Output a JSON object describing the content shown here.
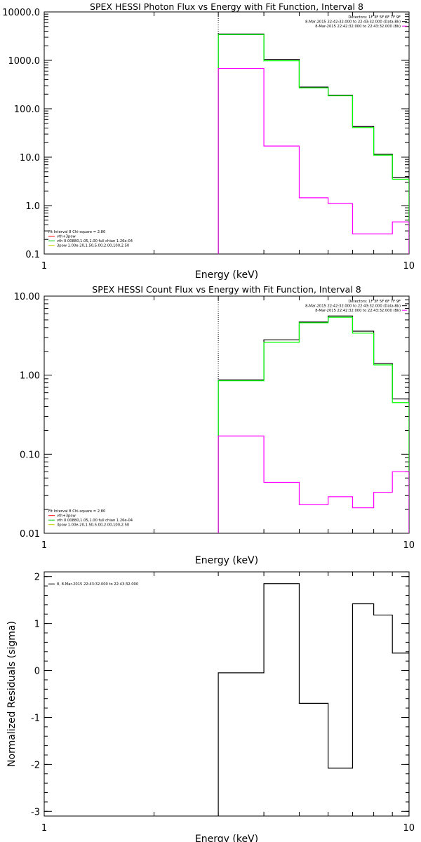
{
  "chart_data": [
    {
      "type": "line",
      "title": "SPEX HESSI Photon Flux vs Energy with Fit Function, Interval 8",
      "xlabel": "Energy (keV)",
      "ylabel": "",
      "xscale": "log",
      "yscale": "log",
      "xlim": [
        1,
        10
      ],
      "ylim": [
        0.1,
        10000
      ],
      "x_ticks": [
        {
          "v": 1,
          "label": "1"
        },
        {
          "v": 10,
          "label": "10"
        }
      ],
      "y_ticks": [
        {
          "v": 0.1,
          "label": "0.1"
        },
        {
          "v": 1,
          "label": "1.0"
        },
        {
          "v": 10,
          "label": "10.0"
        },
        {
          "v": 100,
          "label": "100.0"
        },
        {
          "v": 1000,
          "label": "1000.0"
        },
        {
          "v": 10000,
          "label": "10000.0"
        }
      ],
      "vline_x": 3.0,
      "legend_right": [
        {
          "text": "Detectors: 1F 3F 5F 6F 7F 9F",
          "color": ""
        },
        {
          "text": "8-Mar-2015 22:42:32.000 to 22:43:32.000 (Data-Bk)",
          "color": "#000000"
        },
        {
          "text": "8-Mar-2015 22:42:32.000 to 22:43:32.000 (Bk)",
          "color": "#ff00ff"
        }
      ],
      "legend_left": [
        {
          "text": "Fit Interval 8   Chi-square = 2.80",
          "color": ""
        },
        {
          "text": "vth+3pow",
          "color": "#ff0000"
        },
        {
          "text": "vth 0.00880,1.05,1.00  full chian 1.26e-04",
          "color": "#00cc00"
        },
        {
          "text": "3pow 1.00e-20,1.50,5.00,2.00,100,2.50",
          "color": "#cccc00"
        }
      ],
      "edges": [
        3.0,
        4.0,
        5.0,
        6.0,
        7.0,
        8.0,
        9.0,
        10.0
      ],
      "series": [
        {
          "color": "#000000",
          "values": [
            3500,
            1050,
            280,
            190,
            43,
            11.5,
            3.8
          ]
        },
        {
          "color": "#00ff00",
          "values": [
            3400,
            980,
            270,
            185,
            41,
            11,
            3.5
          ]
        },
        {
          "color": "#ff00ff",
          "values": [
            680,
            17,
            1.45,
            1.1,
            0.26,
            0.26,
            0.46
          ]
        }
      ]
    },
    {
      "type": "line",
      "title": "SPEX HESSI Count Flux vs Energy with Fit Function, Interval 8",
      "xlabel": "Energy (keV)",
      "ylabel": "",
      "xscale": "log",
      "yscale": "log",
      "xlim": [
        1,
        10
      ],
      "ylim": [
        0.01,
        10
      ],
      "x_ticks": [
        {
          "v": 1,
          "label": "1"
        },
        {
          "v": 10,
          "label": "10"
        }
      ],
      "y_ticks": [
        {
          "v": 0.01,
          "label": "0.01"
        },
        {
          "v": 0.1,
          "label": "0.10"
        },
        {
          "v": 1,
          "label": "1.00"
        },
        {
          "v": 10,
          "label": "10.00"
        }
      ],
      "vline_x": 3.0,
      "legend_right": [
        {
          "text": "Detectors: 1F 3F 5F 6F 7F 9F",
          "color": ""
        },
        {
          "text": "8-Mar-2015 22:42:32.000 to 22:43:32.000 (Data-Bk)",
          "color": "#000000"
        },
        {
          "text": "8-Mar-2015 22:42:32.000 to 22:43:32.000 (Bk)",
          "color": "#ff00ff"
        }
      ],
      "legend_left": [
        {
          "text": "Fit Interval 8   Chi-square = 2.80",
          "color": ""
        },
        {
          "text": "vth+3pow",
          "color": "#ff0000"
        },
        {
          "text": "vth 0.00880,1.05,1.00  full chian 1.26e-04",
          "color": "#00cc00"
        },
        {
          "text": "3pow 1.00e-20,1.50,5.00,2.00,100,2.50",
          "color": "#cccc00"
        }
      ],
      "edges": [
        3.0,
        4.0,
        5.0,
        6.0,
        7.0,
        8.0,
        9.0,
        10.0
      ],
      "series": [
        {
          "color": "#000000",
          "values": [
            0.87,
            2.8,
            4.7,
            5.6,
            3.6,
            1.4,
            0.5
          ]
        },
        {
          "color": "#00ff00",
          "values": [
            0.85,
            2.6,
            4.6,
            5.4,
            3.4,
            1.35,
            0.45
          ]
        },
        {
          "color": "#ff00ff",
          "values": [
            0.17,
            0.044,
            0.023,
            0.029,
            0.021,
            0.033,
            0.06
          ]
        }
      ]
    },
    {
      "type": "line",
      "title": "",
      "xlabel": "Energy (keV)",
      "ylabel": "Normalized Residuals (sigma)",
      "xscale": "log",
      "yscale": "linear",
      "xlim": [
        1,
        10
      ],
      "ylim": [
        -3.1,
        2.1
      ],
      "x_ticks": [
        {
          "v": 1,
          "label": "1"
        },
        {
          "v": 10,
          "label": "10"
        }
      ],
      "y_ticks": [
        {
          "v": -3,
          "label": "-3"
        },
        {
          "v": -2,
          "label": "-2"
        },
        {
          "v": -1,
          "label": "-1"
        },
        {
          "v": 0,
          "label": "0"
        },
        {
          "v": 1,
          "label": "1"
        },
        {
          "v": 2,
          "label": "2"
        }
      ],
      "legend_left": [
        {
          "text": "8,  8-Mar-2015 22:43:32.000 to 22:43:32.000",
          "color": "#000000"
        }
      ],
      "edges": [
        3.0,
        4.0,
        5.0,
        6.0,
        7.0,
        8.0,
        9.0,
        10.0
      ],
      "series": [
        {
          "color": "#000000",
          "values": [
            -0.05,
            1.85,
            -0.7,
            -2.08,
            1.42,
            1.18,
            0.37
          ]
        }
      ]
    }
  ]
}
